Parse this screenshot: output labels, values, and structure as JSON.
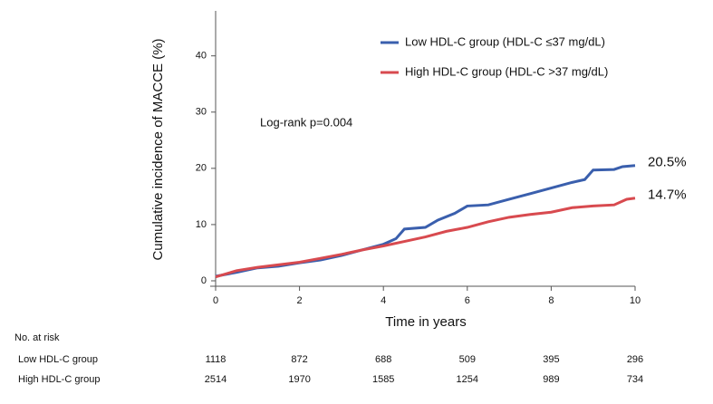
{
  "chart_data": {
    "type": "line",
    "ylabel": "Cumulative incidence of MACCE (%)",
    "xlabel": "Time in years",
    "annotation": "Log-rank p=0.004",
    "xlim": [
      0,
      10
    ],
    "xticks": [
      0,
      2,
      4,
      6,
      8,
      10
    ],
    "ylim": [
      0,
      48
    ],
    "yticks": [
      0,
      10,
      20,
      30,
      40
    ],
    "legend": "upper right",
    "series": [
      {
        "name": "Low HDL-C group (HDL-C ≤37 mg/dL)",
        "color": "#3a5fad",
        "x": [
          0,
          0.5,
          1,
          1.5,
          2,
          2.5,
          3,
          3.5,
          4,
          4.3,
          4.5,
          5,
          5.3,
          5.7,
          6,
          6.5,
          7,
          7.5,
          8,
          8.5,
          8.8,
          9,
          9.5,
          9.7,
          10
        ],
        "values": [
          0.8,
          1.5,
          2.3,
          2.6,
          3.2,
          3.7,
          4.5,
          5.5,
          6.5,
          7.5,
          9.2,
          9.5,
          10.8,
          12,
          13.3,
          13.5,
          14.5,
          15.5,
          16.5,
          17.5,
          18,
          19.7,
          19.8,
          20.3,
          20.5
        ],
        "value_labels": [
          null,
          null,
          null,
          null,
          null,
          null,
          null,
          null,
          null,
          null,
          null,
          null,
          null,
          null,
          null,
          null,
          null,
          null,
          null,
          null,
          null,
          null,
          null,
          null,
          "20.5%"
        ]
      },
      {
        "name": "High HDL-C group (HDL-C >37 mg/dL)",
        "color": "#d84a4f",
        "x": [
          0,
          0.5,
          1,
          2,
          2.5,
          3,
          3.5,
          4,
          4.5,
          5,
          5.5,
          6,
          6.5,
          7,
          7.5,
          8,
          8.5,
          9,
          9.5,
          9.8,
          10
        ],
        "values": [
          0.7,
          1.8,
          2.4,
          3.3,
          4,
          4.7,
          5.5,
          6.2,
          7,
          7.8,
          8.8,
          9.5,
          10.5,
          11.3,
          11.8,
          12.2,
          13,
          13.3,
          13.5,
          14.5,
          14.7
        ],
        "value_labels": [
          null,
          null,
          null,
          null,
          null,
          null,
          null,
          null,
          null,
          null,
          null,
          null,
          null,
          null,
          null,
          null,
          null,
          null,
          null,
          null,
          "14.7%"
        ]
      }
    ],
    "risk_table": {
      "title": "No. at risk",
      "rows": [
        {
          "name": "Low HDL-C group",
          "values": [
            1118,
            872,
            688,
            509,
            395,
            296
          ]
        },
        {
          "name": "High HDL-C group",
          "values": [
            2514,
            1970,
            1585,
            1254,
            989,
            734
          ]
        }
      ]
    }
  }
}
